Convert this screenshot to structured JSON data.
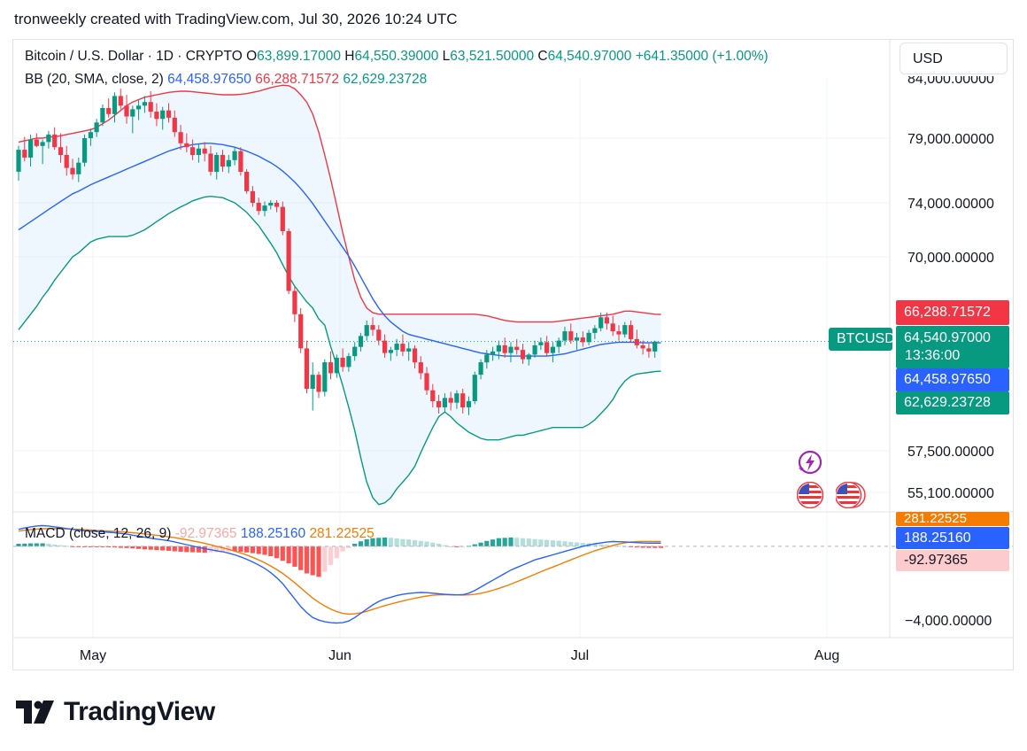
{
  "header": {
    "caption": "tronweekly created with TradingView.com, Jul 30, 2026 10:24 UTC"
  },
  "legend": {
    "symbol": "Bitcoin / U.S. Dollar · 1D · CRYPTO",
    "open_label": "O",
    "open": "63,899.17000",
    "high_label": "H",
    "high": "64,550.39000",
    "low_label": "L",
    "low": "63,521.50000",
    "close_label": "C",
    "close": "64,540.97000",
    "change": "+641.35000 (+1.00%)",
    "bb_label": "BB (20, SMA, close, 2)",
    "bb_basis": "64,458.97650",
    "bb_upper": "66,288.71572",
    "bb_lower": "62,629.23728"
  },
  "macd_legend": {
    "label": "MACD (close, 12, 26, 9)",
    "histogram": "-92.97365",
    "macd": "188.25160",
    "signal": "281.22525"
  },
  "currency": "USD",
  "price_axis": {
    "ticks": [
      "79,000.00000",
      "74,000.00000",
      "70,000.00000",
      "57,500.00000",
      "55,100.00000"
    ],
    "top_partial": "84,000.00000"
  },
  "macd_axis": {
    "tick": "−4,000.00000"
  },
  "price_tags": {
    "upper": "66,288.71572",
    "symbol": "BTCUSD",
    "last": "64,540.97000",
    "countdown": "13:36:00",
    "basis": "64,458.97650",
    "lower": "62,629.23728"
  },
  "macd_tags": {
    "signal": "281.22525",
    "macd": "188.25160",
    "histogram": "-92.97365"
  },
  "time_axis": {
    "labels": [
      "May",
      "Jun",
      "Jul",
      "Aug"
    ]
  },
  "brand": {
    "name": "TradingView"
  },
  "colors": {
    "up": "#089981",
    "down": "#f23645",
    "basis": "#2962ff",
    "signal": "#f57c00",
    "band_fill": "#2196f3"
  },
  "icons": [
    "tradingview-logo-icon",
    "lightning-event-icon",
    "us-flag-icon"
  ],
  "chart_data": {
    "type": "candlestick",
    "interval": "1D",
    "symbol": "BTCUSD",
    "price_range": [
      54000,
      84500
    ],
    "x_start": "2026-04-17",
    "ohlc": [
      [
        76400,
        78400,
        75700,
        78100
      ],
      [
        78100,
        79100,
        77200,
        77500
      ],
      [
        77500,
        79300,
        76800,
        78900
      ],
      [
        78900,
        79400,
        78300,
        78400
      ],
      [
        78400,
        78900,
        77000,
        78700
      ],
      [
        78700,
        79600,
        78200,
        79300
      ],
      [
        79300,
        79900,
        78100,
        78300
      ],
      [
        78300,
        79400,
        77100,
        77700
      ],
      [
        77700,
        78400,
        76100,
        76700
      ],
      [
        76700,
        77400,
        75800,
        76200
      ],
      [
        76200,
        77500,
        75600,
        77100
      ],
      [
        77100,
        79300,
        76800,
        79000
      ],
      [
        79000,
        79800,
        78400,
        79500
      ],
      [
        79500,
        80600,
        79100,
        80300
      ],
      [
        80300,
        81800,
        80000,
        81500
      ],
      [
        81500,
        82300,
        80700,
        81000
      ],
      [
        81000,
        82800,
        80300,
        82500
      ],
      [
        82500,
        83100,
        81400,
        81700
      ],
      [
        81700,
        82600,
        80200,
        80800
      ],
      [
        80800,
        81700,
        79400,
        81400
      ],
      [
        81400,
        82200,
        80500,
        81700
      ],
      [
        81700,
        82500,
        81100,
        82000
      ],
      [
        82000,
        82900,
        80700,
        81200
      ],
      [
        81200,
        81900,
        80000,
        80600
      ],
      [
        80600,
        81600,
        79700,
        81300
      ],
      [
        81300,
        81900,
        80300,
        80700
      ],
      [
        80700,
        81300,
        79100,
        79500
      ],
      [
        79500,
        80100,
        78100,
        78600
      ],
      [
        78600,
        79400,
        77900,
        78300
      ],
      [
        78300,
        78900,
        77300,
        77700
      ],
      [
        77700,
        78600,
        77100,
        78200
      ],
      [
        78200,
        78700,
        77200,
        77800
      ],
      [
        77800,
        78400,
        76100,
        76400
      ],
      [
        76400,
        77900,
        75800,
        77700
      ],
      [
        77700,
        78100,
        76400,
        76800
      ],
      [
        76800,
        77700,
        76300,
        77300
      ],
      [
        77300,
        78300,
        76900,
        78000
      ],
      [
        78000,
        78300,
        76100,
        76400
      ],
      [
        76400,
        76600,
        74700,
        74900
      ],
      [
        74900,
        75300,
        73700,
        74000
      ],
      [
        74000,
        74400,
        73100,
        73400
      ],
      [
        73400,
        74100,
        73000,
        73800
      ],
      [
        73800,
        74200,
        73500,
        74000
      ],
      [
        74000,
        74200,
        73300,
        73700
      ],
      [
        73700,
        74100,
        71600,
        71900
      ],
      [
        71900,
        72100,
        67600,
        67800
      ],
      [
        67800,
        68100,
        65800,
        66300
      ],
      [
        66300,
        66700,
        63800,
        64100
      ],
      [
        64100,
        64600,
        61200,
        61500
      ],
      [
        61500,
        63200,
        60100,
        62400
      ],
      [
        62400,
        62600,
        60900,
        61300
      ],
      [
        61300,
        63400,
        61000,
        63200
      ],
      [
        63200,
        63900,
        62100,
        62500
      ],
      [
        62500,
        63700,
        62200,
        63500
      ],
      [
        63500,
        64100,
        62600,
        62900
      ],
      [
        62900,
        63800,
        62600,
        63600
      ],
      [
        63600,
        64500,
        63300,
        64200
      ],
      [
        64200,
        65100,
        63900,
        64900
      ],
      [
        64900,
        65900,
        64600,
        65600
      ],
      [
        65600,
        66100,
        64900,
        65300
      ],
      [
        65300,
        65600,
        64300,
        64600
      ],
      [
        64600,
        65000,
        63500,
        63800
      ],
      [
        63800,
        64200,
        63300,
        64000
      ],
      [
        64000,
        64700,
        63600,
        64400
      ],
      [
        64400,
        65000,
        63600,
        63900
      ],
      [
        63900,
        64500,
        63300,
        64100
      ],
      [
        64100,
        64300,
        62800,
        63200
      ],
      [
        63200,
        63600,
        62100,
        62500
      ],
      [
        62500,
        62900,
        61100,
        61400
      ],
      [
        61400,
        61800,
        60300,
        60700
      ],
      [
        60700,
        61100,
        59900,
        60300
      ],
      [
        60300,
        61200,
        60000,
        60900
      ],
      [
        60900,
        61300,
        60100,
        60600
      ],
      [
        60600,
        61400,
        60200,
        61200
      ],
      [
        61200,
        61500,
        59900,
        60300
      ],
      [
        60300,
        61000,
        59800,
        60700
      ],
      [
        60700,
        62600,
        60500,
        62400
      ],
      [
        62400,
        63400,
        62100,
        63200
      ],
      [
        63200,
        64000,
        62800,
        63700
      ],
      [
        63700,
        64200,
        63300,
        63900
      ],
      [
        63900,
        64600,
        63400,
        64300
      ],
      [
        64300,
        64800,
        63500,
        63800
      ],
      [
        63800,
        64500,
        63200,
        64200
      ],
      [
        64200,
        64700,
        63700,
        64000
      ],
      [
        64000,
        64400,
        63100,
        63400
      ],
      [
        63400,
        63800,
        63000,
        63700
      ],
      [
        63700,
        64600,
        63500,
        64300
      ],
      [
        64300,
        64800,
        64000,
        64500
      ],
      [
        64500,
        64900,
        63600,
        63800
      ],
      [
        63800,
        64500,
        63200,
        64200
      ],
      [
        64200,
        64800,
        63800,
        64600
      ],
      [
        64600,
        65500,
        64300,
        65200
      ],
      [
        65200,
        65700,
        64400,
        64600
      ],
      [
        64600,
        65100,
        64000,
        64800
      ],
      [
        64800,
        65200,
        64200,
        64500
      ],
      [
        64500,
        65300,
        64300,
        65100
      ],
      [
        65100,
        65600,
        64700,
        65400
      ],
      [
        65400,
        66400,
        65200,
        66100
      ],
      [
        66100,
        66400,
        65300,
        65700
      ],
      [
        65700,
        66200,
        64900,
        65200
      ],
      [
        65200,
        65600,
        64600,
        65000
      ],
      [
        65000,
        65800,
        64800,
        65600
      ],
      [
        65600,
        65900,
        64500,
        64700
      ],
      [
        64700,
        65300,
        64100,
        64300
      ],
      [
        64300,
        64600,
        63700,
        64100
      ],
      [
        64100,
        64400,
        63500,
        63900
      ],
      [
        63900,
        64600,
        63500,
        64540
      ]
    ],
    "bollinger": {
      "upper": [
        78700,
        78800,
        78900,
        79000,
        79000,
        79100,
        79100,
        79200,
        79300,
        79400,
        79500,
        79600,
        79700,
        79900,
        80200,
        80500,
        80900,
        81300,
        81700,
        82000,
        82200,
        82400,
        82500,
        82600,
        82700,
        82800,
        82850,
        82900,
        82900,
        82850,
        82800,
        82750,
        82700,
        82650,
        82600,
        82600,
        82600,
        82650,
        82700,
        82800,
        82900,
        83050,
        83200,
        83300,
        83400,
        83350,
        83100,
        82600,
        82000,
        81000,
        79500,
        77700,
        75800,
        73800,
        71800,
        70000,
        68500,
        67400,
        66700,
        66400,
        66300,
        66300,
        66300,
        66300,
        66300,
        66300,
        66300,
        66300,
        66300,
        66300,
        66300,
        66300,
        66300,
        66300,
        66300,
        66300,
        66300,
        66250,
        66200,
        66100,
        66000,
        65900,
        65850,
        65800,
        65800,
        65800,
        65800,
        65800,
        65800,
        65800,
        65850,
        65900,
        65950,
        66000,
        66050,
        66100,
        66150,
        66200,
        66250,
        66300,
        66400,
        66500,
        66500,
        66450,
        66400,
        66350,
        66300,
        66290
      ],
      "basis": [
        72000,
        72300,
        72600,
        72900,
        73200,
        73500,
        73800,
        74100,
        74400,
        74700,
        74900,
        75150,
        75400,
        75600,
        75800,
        76000,
        76200,
        76400,
        76600,
        76800,
        77000,
        77200,
        77400,
        77600,
        77800,
        78000,
        78150,
        78300,
        78400,
        78500,
        78550,
        78600,
        78600,
        78550,
        78500,
        78400,
        78300,
        78150,
        78000,
        77800,
        77600,
        77350,
        77100,
        76800,
        76450,
        76050,
        75600,
        75100,
        74550,
        73950,
        73300,
        72650,
        72000,
        71350,
        70700,
        70050,
        69400,
        68700,
        68000,
        67300,
        66700,
        66200,
        65800,
        65500,
        65200,
        65000,
        64900,
        64800,
        64700,
        64600,
        64500,
        64400,
        64300,
        64200,
        64100,
        64000,
        63900,
        63800,
        63750,
        63700,
        63650,
        63600,
        63600,
        63600,
        63600,
        63600,
        63600,
        63600,
        63600,
        63650,
        63700,
        63750,
        63850,
        63950,
        64050,
        64150,
        64250,
        64350,
        64400,
        64450,
        64500,
        64500,
        64500,
        64480,
        64460,
        64460,
        64460,
        64460
      ],
      "lower": [
        65300,
        65800,
        66300,
        66800,
        67400,
        67900,
        68500,
        69000,
        69500,
        70000,
        70300,
        70700,
        71100,
        71300,
        71400,
        71500,
        71500,
        71500,
        71500,
        71600,
        71800,
        72000,
        72300,
        72600,
        72900,
        73200,
        73450,
        73700,
        73900,
        74150,
        74300,
        74450,
        74500,
        74450,
        74400,
        74200,
        74000,
        73650,
        73300,
        72800,
        72300,
        71650,
        71000,
        70300,
        69500,
        68750,
        68100,
        67600,
        67100,
        66700,
        66000,
        65600,
        64200,
        63000,
        61700,
        60300,
        58800,
        57100,
        55700,
        54800,
        54400,
        54500,
        54800,
        55300,
        55700,
        56100,
        56600,
        57400,
        58200,
        59000,
        59700,
        60000,
        59700,
        59300,
        59000,
        58700,
        58500,
        58300,
        58200,
        58200,
        58200,
        58300,
        58400,
        58500,
        58500,
        58600,
        58700,
        58800,
        58900,
        59000,
        59000,
        59000,
        59000,
        59000,
        59000,
        59200,
        59500,
        59900,
        60300,
        60800,
        61500,
        62000,
        62300,
        62450,
        62500,
        62550,
        62600,
        62629
      ]
    },
    "macd": {
      "macd_range": [
        -4600,
        1300
      ],
      "macd_line": [
        1000,
        1080,
        1150,
        1200,
        1220,
        1200,
        1150,
        1100,
        1050,
        1000,
        950,
        920,
        900,
        880,
        860,
        830,
        800,
        760,
        720,
        660,
        600,
        540,
        480,
        430,
        380,
        330,
        260,
        180,
        100,
        20,
        -60,
        -140,
        -200,
        -260,
        -320,
        -400,
        -500,
        -620,
        -760,
        -920,
        -1100,
        -1300,
        -1550,
        -1850,
        -2200,
        -2650,
        -3100,
        -3550,
        -3900,
        -4200,
        -4350,
        -4450,
        -4500,
        -4520,
        -4500,
        -4400,
        -4200,
        -3950,
        -3700,
        -3450,
        -3250,
        -3100,
        -3000,
        -2900,
        -2830,
        -2780,
        -2740,
        -2720,
        -2730,
        -2760,
        -2800,
        -2830,
        -2850,
        -2860,
        -2850,
        -2760,
        -2600,
        -2400,
        -2200,
        -2000,
        -1800,
        -1600,
        -1400,
        -1250,
        -1100,
        -950,
        -800,
        -700,
        -600,
        -500,
        -400,
        -300,
        -200,
        -100,
        0,
        80,
        150,
        200,
        250,
        280,
        270,
        260,
        240,
        220,
        200,
        190,
        188,
        188
      ],
      "signal_line": [
        900,
        950,
        990,
        1020,
        1040,
        1050,
        1050,
        1040,
        1030,
        1020,
        1000,
        980,
        960,
        940,
        920,
        900,
        880,
        860,
        830,
        800,
        770,
        730,
        690,
        650,
        610,
        560,
        510,
        450,
        390,
        320,
        250,
        170,
        90,
        0,
        -90,
        -180,
        -280,
        -390,
        -510,
        -650,
        -800,
        -970,
        -1160,
        -1370,
        -1600,
        -1870,
        -2150,
        -2450,
        -2750,
        -3050,
        -3300,
        -3520,
        -3700,
        -3850,
        -3950,
        -4000,
        -3980,
        -3920,
        -3830,
        -3720,
        -3610,
        -3500,
        -3400,
        -3310,
        -3220,
        -3140,
        -3060,
        -2990,
        -2930,
        -2880,
        -2860,
        -2850,
        -2850,
        -2860,
        -2870,
        -2860,
        -2830,
        -2770,
        -2690,
        -2590,
        -2480,
        -2360,
        -2230,
        -2090,
        -1950,
        -1800,
        -1650,
        -1500,
        -1360,
        -1220,
        -1080,
        -940,
        -800,
        -660,
        -520,
        -390,
        -260,
        -150,
        -50,
        50,
        140,
        210,
        250,
        275,
        285,
        285,
        283,
        281
      ],
      "histogram": [
        150,
        160,
        170,
        180,
        180,
        150,
        110,
        70,
        30,
        -10,
        -40,
        -50,
        -50,
        -50,
        -50,
        -60,
        -70,
        -90,
        -100,
        -120,
        -150,
        -180,
        -200,
        -220,
        -240,
        -260,
        -290,
        -320,
        -340,
        -350,
        -360,
        -380,
        -360,
        -340,
        -320,
        -300,
        -300,
        -320,
        -360,
        -400,
        -450,
        -500,
        -580,
        -700,
        -850,
        -1000,
        -1200,
        -1400,
        -1600,
        -1700,
        -1800,
        -1500,
        -1100,
        -700,
        -300,
        -100,
        150,
        300,
        420,
        480,
        500,
        520,
        500,
        470,
        430,
        400,
        360,
        320,
        280,
        220,
        150,
        70,
        0,
        -30,
        -20,
        30,
        120,
        220,
        320,
        400,
        480,
        500,
        520,
        500,
        480,
        460,
        430,
        400,
        380,
        350,
        330,
        300,
        260,
        230,
        200,
        180,
        150,
        120,
        90,
        60,
        30,
        0,
        -40,
        -70,
        -85,
        -90,
        -93,
        -93
      ]
    }
  }
}
